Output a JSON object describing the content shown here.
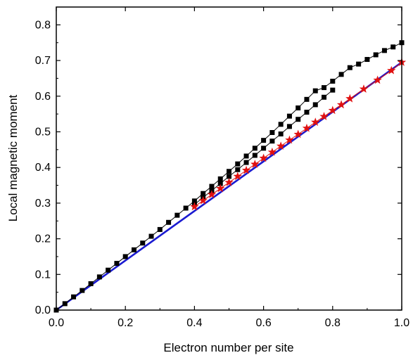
{
  "chart_data": {
    "type": "scatter",
    "xlabel": "Electron number per site",
    "ylabel": "Local magnetic moment",
    "xlim": [
      0.0,
      1.0
    ],
    "ylim": [
      0.0,
      0.85
    ],
    "xticks": [
      0.0,
      0.2,
      0.4,
      0.6,
      0.8,
      1.0
    ],
    "yticks": [
      0.0,
      0.1,
      0.2,
      0.3,
      0.4,
      0.5,
      0.6,
      0.7,
      0.8
    ],
    "xtick_labels": [
      "0.0",
      "0.2",
      "0.4",
      "0.6",
      "0.8",
      "1.0"
    ],
    "ytick_labels": [
      "0.0",
      "0.1",
      "0.2",
      "0.3",
      "0.4",
      "0.5",
      "0.6",
      "0.7",
      "0.8"
    ],
    "grid": false,
    "colors": {
      "squares": "#000000",
      "stars": "#e01010",
      "line": "#1a1ad0"
    },
    "series": [
      {
        "marker": "square",
        "color": "#000000",
        "x": [
          0.0,
          0.025,
          0.05,
          0.075,
          0.1,
          0.125,
          0.15,
          0.175,
          0.2,
          0.225,
          0.25,
          0.275,
          0.3,
          0.325,
          0.35,
          0.375,
          0.4,
          0.425,
          0.45,
          0.475,
          0.5,
          0.525,
          0.55,
          0.575,
          0.6,
          0.625,
          0.65,
          0.675,
          0.7,
          0.725,
          0.75,
          0.775,
          0.8,
          0.825,
          0.85,
          0.875,
          0.9,
          0.925,
          0.95,
          0.975,
          1.0
        ],
        "y": [
          0.0,
          0.018,
          0.037,
          0.055,
          0.074,
          0.093,
          0.112,
          0.131,
          0.15,
          0.169,
          0.188,
          0.207,
          0.226,
          0.246,
          0.266,
          0.286,
          0.306,
          0.327,
          0.347,
          0.368,
          0.389,
          0.41,
          0.432,
          0.454,
          0.476,
          0.498,
          0.521,
          0.544,
          0.567,
          0.591,
          0.615,
          0.624,
          0.642,
          0.661,
          0.68,
          0.69,
          0.703,
          0.716,
          0.728,
          0.738,
          0.75
        ]
      },
      {
        "marker": "square",
        "color": "#000000",
        "x": [
          0.4,
          0.425,
          0.45,
          0.475,
          0.5,
          0.525,
          0.55,
          0.575,
          0.6,
          0.625,
          0.65,
          0.675,
          0.7,
          0.725,
          0.75,
          0.775,
          0.8
        ],
        "y": [
          0.296,
          0.316,
          0.335,
          0.355,
          0.375,
          0.394,
          0.414,
          0.434,
          0.454,
          0.474,
          0.494,
          0.515,
          0.535,
          0.555,
          0.576,
          0.597,
          0.617
        ]
      },
      {
        "marker": "star",
        "color": "#e01010",
        "x": [
          0.4,
          0.425,
          0.45,
          0.475,
          0.5,
          0.525,
          0.55,
          0.575,
          0.6,
          0.625,
          0.65,
          0.675,
          0.7,
          0.725,
          0.75,
          0.775,
          0.8,
          0.825,
          0.85,
          0.89,
          0.93,
          0.97,
          1.0
        ],
        "y": [
          0.29,
          0.307,
          0.324,
          0.341,
          0.358,
          0.375,
          0.392,
          0.409,
          0.426,
          0.443,
          0.46,
          0.477,
          0.493,
          0.51,
          0.527,
          0.543,
          0.56,
          0.576,
          0.593,
          0.62,
          0.645,
          0.672,
          0.695
        ]
      },
      {
        "marker": "line",
        "color": "#1a1ad0",
        "x": [
          0.0,
          1.0
        ],
        "y": [
          0.0,
          0.695
        ]
      }
    ]
  }
}
